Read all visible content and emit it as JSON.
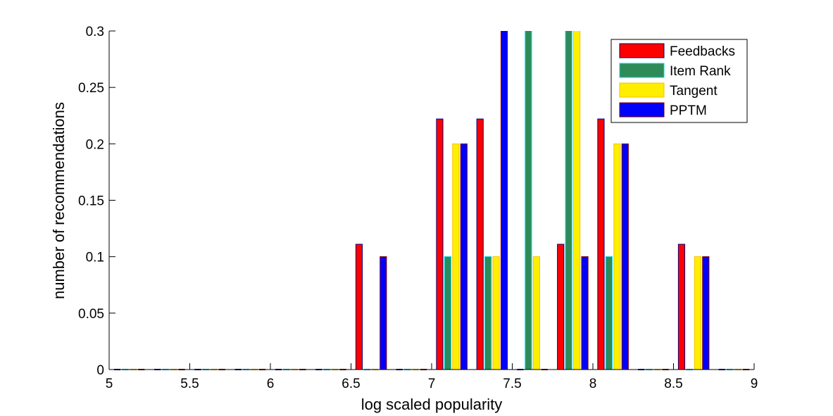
{
  "chart_data": {
    "type": "bar",
    "title": "",
    "xlabel": "log scaled popularity",
    "ylabel": "number of recommendations",
    "xlim": [
      5,
      9
    ],
    "ylim": [
      0,
      0.3
    ],
    "xticks": [
      "5",
      "5.5",
      "6",
      "6.5",
      "7",
      "7.5",
      "8",
      "8.5",
      "9"
    ],
    "xtick_values": [
      5,
      5.5,
      6,
      6.5,
      7,
      7.5,
      8,
      8.5,
      9
    ],
    "yticks": [
      "0",
      "0.05",
      "0.1",
      "0.15",
      "0.2",
      "0.25",
      "0.3"
    ],
    "ytick_values": [
      0,
      0.05,
      0.1,
      0.15,
      0.2,
      0.25,
      0.3
    ],
    "grid": false,
    "legend_position": "top-right",
    "bin_centers": [
      5.125,
      5.375,
      5.625,
      5.875,
      6.125,
      6.375,
      6.625,
      6.875,
      7.125,
      7.375,
      7.625,
      7.875,
      8.125,
      8.375,
      8.625,
      8.875
    ],
    "series": [
      {
        "name": "Feedbacks",
        "color": "#ff0000",
        "edge": "#00007f",
        "values": [
          0,
          0,
          0,
          0,
          0,
          0,
          0.111,
          0,
          0.222,
          0.222,
          0,
          0.111,
          0.222,
          0,
          0.111,
          0
        ]
      },
      {
        "name": "Item Rank",
        "color": "#2e8b57",
        "edge": "#00d8f0",
        "values": [
          0,
          0,
          0,
          0,
          0,
          0,
          0,
          0,
          0.1,
          0.1,
          0.333,
          0.333,
          0.1,
          0,
          0,
          0
        ]
      },
      {
        "name": "Tangent",
        "color": "#ffee00",
        "edge": "#f2c300",
        "values": [
          0,
          0,
          0,
          0,
          0,
          0,
          0,
          0,
          0.2,
          0.1,
          0.1,
          0.333,
          0.2,
          0,
          0.1,
          0
        ]
      },
      {
        "name": "PPTM",
        "color": "#0000ff",
        "edge": "#7f0000",
        "values": [
          0,
          0,
          0,
          0,
          0,
          0,
          0.1,
          0,
          0.2,
          0.333,
          0,
          0.1,
          0.2,
          0,
          0.1,
          0
        ]
      }
    ]
  }
}
